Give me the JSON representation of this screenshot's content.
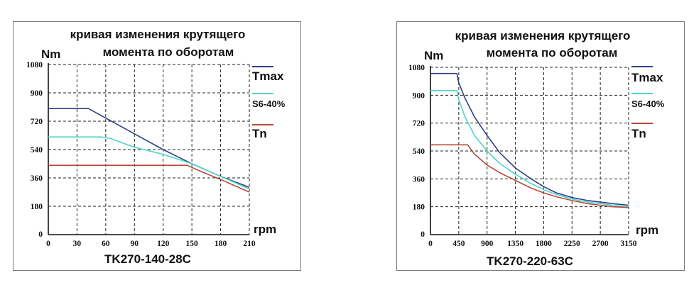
{
  "chart_data": [
    {
      "type": "line",
      "title_lines": [
        "кривая изменения крутящего",
        "момента по оборотам"
      ],
      "ylabel": "Nm",
      "xlabel": "rpm",
      "model": "TK270-140-28C",
      "xlim": [
        0,
        210
      ],
      "ylim": [
        0,
        1080
      ],
      "xticks": [
        "0",
        "30",
        "60",
        "90",
        "120",
        "150",
        "180",
        "210"
      ],
      "yticks": [
        "0",
        "180",
        "360",
        "540",
        "720",
        "900",
        "1080"
      ],
      "grid": true,
      "series": [
        {
          "name": "Tmax",
          "color": "#2f3f86",
          "x": [
            0,
            42,
            60,
            90,
            120,
            150,
            180,
            210
          ],
          "y": [
            800,
            800,
            740,
            640,
            540,
            450,
            370,
            300
          ]
        },
        {
          "name": "S6-40%",
          "color": "#4fd6c8",
          "x": [
            0,
            55,
            65,
            90,
            120,
            150,
            180,
            210
          ],
          "y": [
            620,
            620,
            610,
            555,
            510,
            450,
            370,
            290
          ]
        },
        {
          "name": "Tn",
          "color": "#b54a3a",
          "x": [
            0,
            145,
            160,
            180,
            210
          ],
          "y": [
            440,
            440,
            400,
            350,
            270
          ]
        }
      ]
    },
    {
      "type": "line",
      "title_lines": [
        "кривая изменения крутящего",
        "момента по оборотам"
      ],
      "ylabel": "Nm",
      "xlabel": "rpm",
      "model": "TK270-220-63C",
      "xlim": [
        0,
        3150
      ],
      "ylim": [
        0,
        1080
      ],
      "xticks": [
        "0",
        "450",
        "900",
        "1350",
        "1800",
        "2250",
        "2700",
        "3150"
      ],
      "yticks": [
        "0",
        "180",
        "360",
        "540",
        "720",
        "900",
        "1080"
      ],
      "grid": true,
      "series": [
        {
          "name": "Tmax",
          "color": "#2f3f86",
          "x": [
            0,
            420,
            450,
            550,
            700,
            900,
            1100,
            1350,
            1600,
            1800,
            2000,
            2250,
            2500,
            2700,
            2900,
            3150
          ],
          "y": [
            1040,
            1040,
            980,
            880,
            760,
            640,
            530,
            430,
            360,
            310,
            270,
            240,
            220,
            210,
            200,
            190
          ]
        },
        {
          "name": "S6-40%",
          "color": "#4fd6c8",
          "x": [
            0,
            420,
            450,
            550,
            700,
            900,
            1100,
            1350,
            1600,
            1800,
            2000,
            2250,
            2500,
            2700,
            2900,
            3150
          ],
          "y": [
            930,
            930,
            870,
            760,
            640,
            540,
            460,
            390,
            330,
            290,
            260,
            230,
            210,
            200,
            190,
            180
          ]
        },
        {
          "name": "Tn",
          "color": "#b54a3a",
          "x": [
            0,
            590,
            700,
            900,
            1100,
            1350,
            1600,
            1800,
            2000,
            2250,
            2500,
            2700,
            2900,
            3150
          ],
          "y": [
            580,
            580,
            520,
            450,
            400,
            350,
            300,
            270,
            245,
            220,
            200,
            190,
            180,
            175
          ]
        }
      ]
    }
  ]
}
